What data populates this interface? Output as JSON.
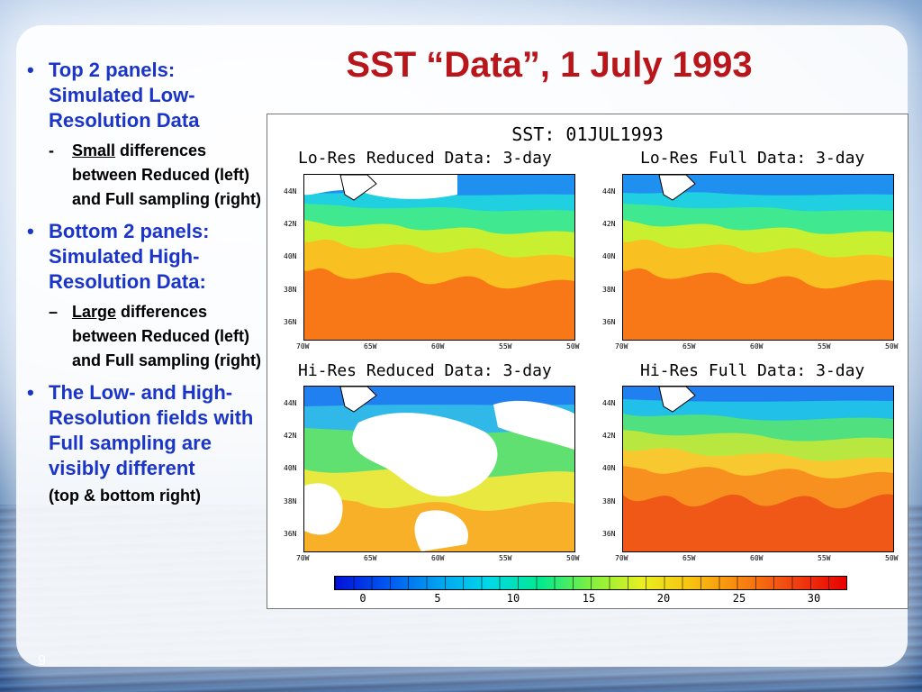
{
  "slide": {
    "title": "SST “Data”, 1 July 1993",
    "page_number": "9"
  },
  "bullets": [
    {
      "text": "Top 2 panels: Simulated Low-Resolution Data",
      "sub": {
        "marker": "-",
        "emph": "Small",
        "rest": " differences between Reduced (left) and Full sampling (right)"
      }
    },
    {
      "text": "Bottom 2 panels: Simulated High-Resolution Data:",
      "sub": {
        "marker": "–",
        "emph": "Large",
        "rest": " differences between Reduced (left) and Full sampling (right)"
      }
    },
    {
      "text": "The Low- and High-Resolution fields with Full sampling are visibly different"
    }
  ],
  "note": "(top & bottom right)",
  "figure": {
    "title": "SST: 01JUL1993",
    "panels": [
      {
        "title": "Lo-Res Reduced Data: 3-day"
      },
      {
        "title": "Lo-Res Full Data: 3-day"
      },
      {
        "title": "Hi-Res Reduced Data: 3-day"
      },
      {
        "title": "Hi-Res Full Data: 3-day"
      }
    ],
    "lat_ticks": [
      "44N",
      "42N",
      "40N",
      "38N",
      "36N"
    ],
    "lon_ticks": [
      "70W",
      "65W",
      "60W",
      "55W",
      "50W"
    ],
    "colorbar_labels": [
      "0",
      "5",
      "10",
      "15",
      "20",
      "25",
      "30"
    ]
  },
  "colors": {
    "title": "#b8161b",
    "bullet": "#1a35c8"
  }
}
